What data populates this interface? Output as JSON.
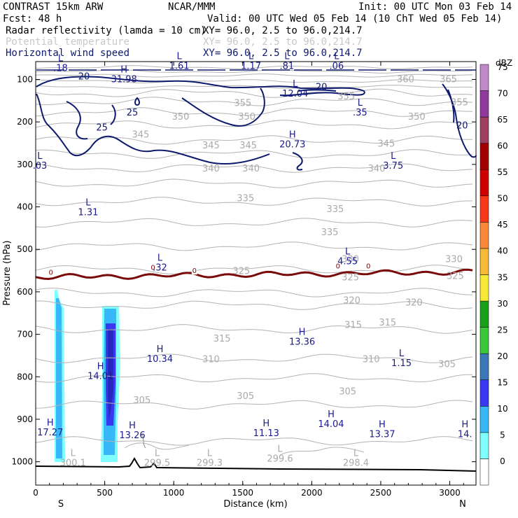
{
  "header": {
    "model": "CONTRAST 15km ARW",
    "forecast": "Fcst:    48 h",
    "org": "NCAR/MMM",
    "init": "Init: 00 UTC Mon 03 Feb 14",
    "valid": "Valid: 00 UTC Wed 05 Feb 14 (10 ChT Wed 05 Feb 14)"
  },
  "fields": [
    {
      "name": "Radar reflectivity (lamda = 10 cm)",
      "xy": "XY=  96.0,  2.5 to  96.0,214.7",
      "color": "#000000"
    },
    {
      "name": "Potential temperature",
      "xy": "XY=  96.0,  2.5 to  96.0,214.7",
      "color": "#c8c8c8"
    },
    {
      "name": "Horizontal wind speed",
      "xy": "XY=  96.0,  2.5 to  96.0,214.7",
      "color": "#0d1a6e"
    }
  ],
  "colorbar": {
    "unit": "dBZ",
    "levels": [
      "0",
      "5",
      "10",
      "15",
      "20",
      "25",
      "30",
      "35",
      "40",
      "45",
      "50",
      "55",
      "60",
      "65",
      "70",
      "75"
    ],
    "colors": [
      "#ffffff",
      "#80ffff",
      "#38b8f8",
      "#3838f0",
      "#3878b8",
      "#38c838",
      "#18a018",
      "#f8e838",
      "#f8b838",
      "#f88838",
      "#f83818",
      "#d00000",
      "#a00000",
      "#a04060",
      "#9038a0",
      "#c088c8"
    ]
  },
  "chart_data": {
    "type": "contour-cross-section",
    "xlabel": "Distance (km)",
    "ylabel": "Pressure (hPa)",
    "xlim": [
      0,
      3190
    ],
    "ylim": [
      1055,
      58
    ],
    "xticks": [
      "0",
      "500",
      "1000",
      "1500",
      "2000",
      "2500",
      "3000"
    ],
    "yticks": [
      "100",
      "200",
      "300",
      "400",
      "500",
      "600",
      "700",
      "800",
      "900",
      "1000"
    ],
    "end_labels": {
      "left": "S",
      "right": "N"
    },
    "wind_contour_labels": [
      {
        "x": 350,
        "p": 100,
        "text": "20"
      },
      {
        "x": 700,
        "p": 185,
        "text": "25"
      },
      {
        "x": 2070,
        "p": 125,
        "text": "20"
      },
      {
        "x": 3090,
        "p": 215,
        "text": "20"
      },
      {
        "x": 480,
        "p": 220,
        "text": "25"
      }
    ],
    "theta_labels": [
      {
        "x": 2680,
        "p": 107,
        "text": "360"
      },
      {
        "x": 2990,
        "p": 107,
        "text": "365"
      },
      {
        "x": 1500,
        "p": 163,
        "text": "355"
      },
      {
        "x": 2250,
        "p": 147,
        "text": "355"
      },
      {
        "x": 3070,
        "p": 161,
        "text": "355"
      },
      {
        "x": 2760,
        "p": 195,
        "text": "350"
      },
      {
        "x": 1050,
        "p": 195,
        "text": "350"
      },
      {
        "x": 1530,
        "p": 195,
        "text": "350"
      },
      {
        "x": 760,
        "p": 237,
        "text": "345"
      },
      {
        "x": 1270,
        "p": 262,
        "text": "345"
      },
      {
        "x": 1540,
        "p": 262,
        "text": "345"
      },
      {
        "x": 2540,
        "p": 258,
        "text": "345"
      },
      {
        "x": 1270,
        "p": 317,
        "text": "340"
      },
      {
        "x": 1560,
        "p": 317,
        "text": "340"
      },
      {
        "x": 2470,
        "p": 317,
        "text": "340"
      },
      {
        "x": 1520,
        "p": 387,
        "text": "335"
      },
      {
        "x": 2170,
        "p": 412,
        "text": "335"
      },
      {
        "x": 2130,
        "p": 467,
        "text": "335"
      },
      {
        "x": 2280,
        "p": 530,
        "text": "330"
      },
      {
        "x": 3030,
        "p": 530,
        "text": "330"
      },
      {
        "x": 1490,
        "p": 558,
        "text": "325"
      },
      {
        "x": 2280,
        "p": 573,
        "text": "325"
      },
      {
        "x": 3040,
        "p": 570,
        "text": "325"
      },
      {
        "x": 2290,
        "p": 627,
        "text": "320"
      },
      {
        "x": 2740,
        "p": 632,
        "text": "320"
      },
      {
        "x": 2300,
        "p": 685,
        "text": "315"
      },
      {
        "x": 2550,
        "p": 679,
        "text": "315"
      },
      {
        "x": 1350,
        "p": 717,
        "text": "315"
      },
      {
        "x": 1270,
        "p": 766,
        "text": "310"
      },
      {
        "x": 2430,
        "p": 766,
        "text": "310"
      },
      {
        "x": 2980,
        "p": 777,
        "text": "305"
      },
      {
        "x": 2260,
        "p": 842,
        "text": "305"
      },
      {
        "x": 1520,
        "p": 852,
        "text": "305"
      },
      {
        "x": 770,
        "p": 862,
        "text": "305"
      }
    ],
    "extrema": [
      {
        "type": "L",
        "value": ".18",
        "x": 180,
        "p": 80
      },
      {
        "type": "H",
        "value": "31.98",
        "x": 640,
        "p": 107
      },
      {
        "type": "L",
        "value": "1.61",
        "x": 1040,
        "p": 75
      },
      {
        "type": "L",
        "value": "1.17",
        "x": 1560,
        "p": 75
      },
      {
        "type": "L",
        "value": ".81",
        "x": 1820,
        "p": 75
      },
      {
        "type": "L",
        "value": ".06",
        "x": 2180,
        "p": 75
      },
      {
        "type": "L",
        "value": "12.04",
        "x": 1880,
        "p": 140
      },
      {
        "type": "L",
        "value": ".35",
        "x": 2350,
        "p": 185
      },
      {
        "type": "H",
        "value": "20.73",
        "x": 1860,
        "p": 260
      },
      {
        "type": "L",
        "value": ".03",
        "x": 30,
        "p": 310
      },
      {
        "type": "L",
        "value": "3.75",
        "x": 2590,
        "p": 310
      },
      {
        "type": "L",
        "value": "1.31",
        "x": 380,
        "p": 420
      },
      {
        "type": "L",
        "value": ".32",
        "x": 900,
        "p": 550
      },
      {
        "type": "L",
        "value": "4.55",
        "x": 2260,
        "p": 535
      },
      {
        "type": "H",
        "value": "13.36",
        "x": 1930,
        "p": 725
      },
      {
        "type": "H",
        "value": "10.34",
        "x": 900,
        "p": 765
      },
      {
        "type": "L",
        "value": "1.15",
        "x": 2650,
        "p": 775
      },
      {
        "type": "H",
        "value": "14.01",
        "x": 470,
        "p": 805
      },
      {
        "type": "H",
        "value": "17.27",
        "x": 105,
        "p": 938
      },
      {
        "type": "H",
        "value": "13.26",
        "x": 700,
        "p": 945
      },
      {
        "type": "H",
        "value": "11.13",
        "x": 1670,
        "p": 940
      },
      {
        "type": "H",
        "value": "14.04",
        "x": 2140,
        "p": 918
      },
      {
        "type": "H",
        "value": "13.37",
        "x": 2510,
        "p": 942
      },
      {
        "type": "H",
        "value": "14.",
        "x": 3110,
        "p": 942
      },
      {
        "type": "L",
        "value": "300.1",
        "x": 270,
        "p": 1010
      },
      {
        "type": "L",
        "value": "299.5",
        "x": 880,
        "p": 1010
      },
      {
        "type": "L",
        "value": "299.3",
        "x": 1260,
        "p": 1010
      },
      {
        "type": "L",
        "value": "299.6",
        "x": 1770,
        "p": 1000
      },
      {
        "type": "L",
        "value": "298.4",
        "x": 2320,
        "p": 1010
      }
    ],
    "zero_isotherm_labels": [
      {
        "x": 110,
        "p": 560,
        "text": "0"
      },
      {
        "x": 850,
        "p": 548,
        "text": "0"
      },
      {
        "x": 1150,
        "p": 556,
        "text": "0"
      },
      {
        "x": 2190,
        "p": 545,
        "text": "0"
      },
      {
        "x": 2410,
        "p": 545,
        "text": "0"
      }
    ]
  }
}
